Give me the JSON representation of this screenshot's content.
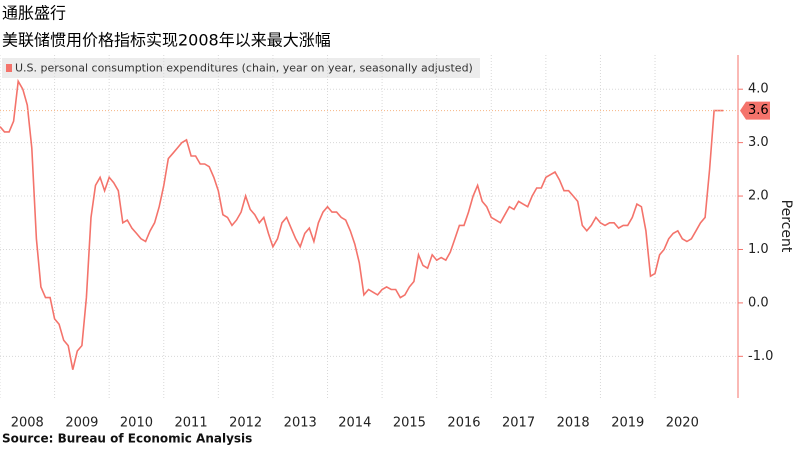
{
  "chart_data": {
    "type": "line",
    "title": "通胀盛行",
    "subtitle": "美联储惯用价格指标实现2008年以来最大涨幅",
    "source": "Source: Bureau of Economic Analysis",
    "y_label": "Percent",
    "grid": true,
    "legend": "top-left",
    "xlim": [
      2008,
      2021.52
    ],
    "xticks": [
      2008,
      2009,
      2010,
      2011,
      2012,
      2013,
      2014,
      2015,
      2016,
      2017,
      2018,
      2019,
      2020
    ],
    "ylim": [
      -1.78,
      4.64
    ],
    "yticks": [
      {
        "value": -1,
        "label": "-1.0"
      },
      {
        "value": 0,
        "label": "0.0"
      },
      {
        "value": 1,
        "label": "1.0"
      },
      {
        "value": 2,
        "label": "2.0"
      },
      {
        "value": 3,
        "label": "3.0"
      },
      {
        "value": 4,
        "label": "4.0"
      }
    ],
    "x": [
      2008,
      2008.083,
      2008.167,
      2008.25,
      2008.333,
      2008.417,
      2008.5,
      2008.583,
      2008.667,
      2008.75,
      2008.833,
      2008.917,
      2009,
      2009.083,
      2009.167,
      2009.25,
      2009.333,
      2009.417,
      2009.5,
      2009.583,
      2009.667,
      2009.75,
      2009.833,
      2009.917,
      2010,
      2010.083,
      2010.167,
      2010.25,
      2010.333,
      2010.417,
      2010.5,
      2010.583,
      2010.667,
      2010.75,
      2010.833,
      2010.917,
      2011,
      2011.083,
      2011.167,
      2011.25,
      2011.333,
      2011.417,
      2011.5,
      2011.583,
      2011.667,
      2011.75,
      2011.833,
      2011.917,
      2012,
      2012.083,
      2012.167,
      2012.25,
      2012.333,
      2012.417,
      2012.5,
      2012.583,
      2012.667,
      2012.75,
      2012.833,
      2012.917,
      2013,
      2013.083,
      2013.167,
      2013.25,
      2013.333,
      2013.417,
      2013.5,
      2013.583,
      2013.667,
      2013.75,
      2013.833,
      2013.917,
      2014,
      2014.083,
      2014.167,
      2014.25,
      2014.333,
      2014.417,
      2014.5,
      2014.583,
      2014.667,
      2014.75,
      2014.833,
      2014.917,
      2015,
      2015.083,
      2015.167,
      2015.25,
      2015.333,
      2015.417,
      2015.5,
      2015.583,
      2015.667,
      2015.75,
      2015.833,
      2015.917,
      2016,
      2016.083,
      2016.167,
      2016.25,
      2016.333,
      2016.417,
      2016.5,
      2016.583,
      2016.667,
      2016.75,
      2016.833,
      2016.917,
      2017,
      2017.083,
      2017.167,
      2017.25,
      2017.333,
      2017.417,
      2017.5,
      2017.583,
      2017.667,
      2017.75,
      2017.833,
      2017.917,
      2018,
      2018.083,
      2018.167,
      2018.25,
      2018.333,
      2018.417,
      2018.5,
      2018.583,
      2018.667,
      2018.75,
      2018.833,
      2018.917,
      2019,
      2019.083,
      2019.167,
      2019.25,
      2019.333,
      2019.417,
      2019.5,
      2019.583,
      2019.667,
      2019.75,
      2019.833,
      2019.917,
      2020,
      2020.083,
      2020.167,
      2020.25,
      2020.333,
      2020.417,
      2020.5,
      2020.583,
      2020.667,
      2020.75,
      2020.833,
      2020.917,
      2021,
      2021.083,
      2021.167,
      2021.25
    ],
    "series": [
      {
        "name": "U.S. personal consumption expenditures (chain, year on year, seasonally adjusted)",
        "color": "#f4736b",
        "values": [
          3.3,
          3.2,
          3.2,
          3.4,
          4.15,
          4.0,
          3.7,
          2.9,
          1.2,
          0.3,
          0.1,
          0.1,
          -0.3,
          -0.4,
          -0.7,
          -0.8,
          -1.25,
          -0.9,
          -0.8,
          0.1,
          1.6,
          2.2,
          2.35,
          2.1,
          2.35,
          2.25,
          2.1,
          1.5,
          1.55,
          1.4,
          1.3,
          1.2,
          1.15,
          1.35,
          1.5,
          1.8,
          2.2,
          2.7,
          2.8,
          2.9,
          3.0,
          3.05,
          2.75,
          2.75,
          2.6,
          2.6,
          2.55,
          2.35,
          2.1,
          1.65,
          1.6,
          1.45,
          1.55,
          1.7,
          2.0,
          1.75,
          1.65,
          1.5,
          1.6,
          1.3,
          1.05,
          1.2,
          1.5,
          1.6,
          1.4,
          1.2,
          1.05,
          1.3,
          1.4,
          1.15,
          1.5,
          1.7,
          1.8,
          1.7,
          1.7,
          1.6,
          1.55,
          1.35,
          1.1,
          0.75,
          0.15,
          0.25,
          0.2,
          0.15,
          0.25,
          0.3,
          0.25,
          0.25,
          0.1,
          0.15,
          0.3,
          0.4,
          0.9,
          0.7,
          0.65,
          0.9,
          0.8,
          0.85,
          0.8,
          0.95,
          1.2,
          1.45,
          1.45,
          1.7,
          2.0,
          2.2,
          1.9,
          1.8,
          1.6,
          1.55,
          1.5,
          1.65,
          1.8,
          1.75,
          1.9,
          1.85,
          1.8,
          2.0,
          2.15,
          2.15,
          2.35,
          2.4,
          2.45,
          2.3,
          2.1,
          2.1,
          2.0,
          1.9,
          1.45,
          1.35,
          1.45,
          1.6,
          1.5,
          1.45,
          1.5,
          1.5,
          1.4,
          1.45,
          1.45,
          1.6,
          1.85,
          1.8,
          1.35,
          0.5,
          0.55,
          0.9,
          1.0,
          1.2,
          1.3,
          1.35,
          1.2,
          1.15,
          1.2,
          1.35,
          1.5,
          1.6,
          2.5,
          3.6,
          3.6,
          3.6
        ]
      }
    ]
  }
}
